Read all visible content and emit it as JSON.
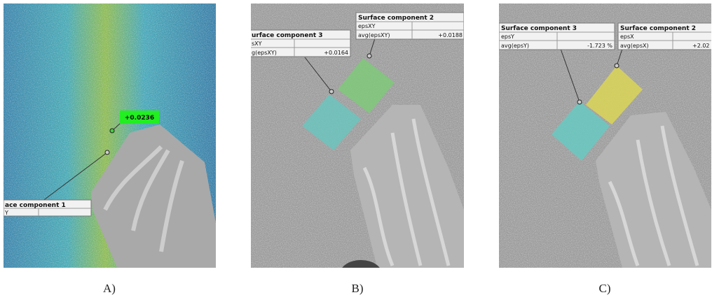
{
  "panels": [
    {
      "label": "A)",
      "value_tag": "+0.0236",
      "boxes": [
        {
          "title": "ace component 1",
          "rows": [
            [
              "Y",
              ""
            ]
          ]
        }
      ]
    },
    {
      "label": "B)",
      "boxes": [
        {
          "title": "Surface component 2",
          "rows": [
            [
              "epsXY",
              ""
            ],
            [
              "avg(epsXY)",
              "+0.0188"
            ]
          ]
        },
        {
          "title": "urface component 3",
          "rows": [
            [
              "sXY",
              ""
            ],
            [
              "g(epsXY)",
              "+0.0164"
            ]
          ]
        }
      ]
    },
    {
      "label": "C)",
      "boxes": [
        {
          "title": "Surface component 3",
          "rows": [
            [
              "epsY",
              ""
            ],
            [
              "avg(epsY)",
              "-1.723 %"
            ]
          ]
        },
        {
          "title": "Surface component 2",
          "rows": [
            [
              "epsX",
              ""
            ],
            [
              "avg(epsX)",
              "+2.02"
            ]
          ]
        }
      ]
    }
  ]
}
